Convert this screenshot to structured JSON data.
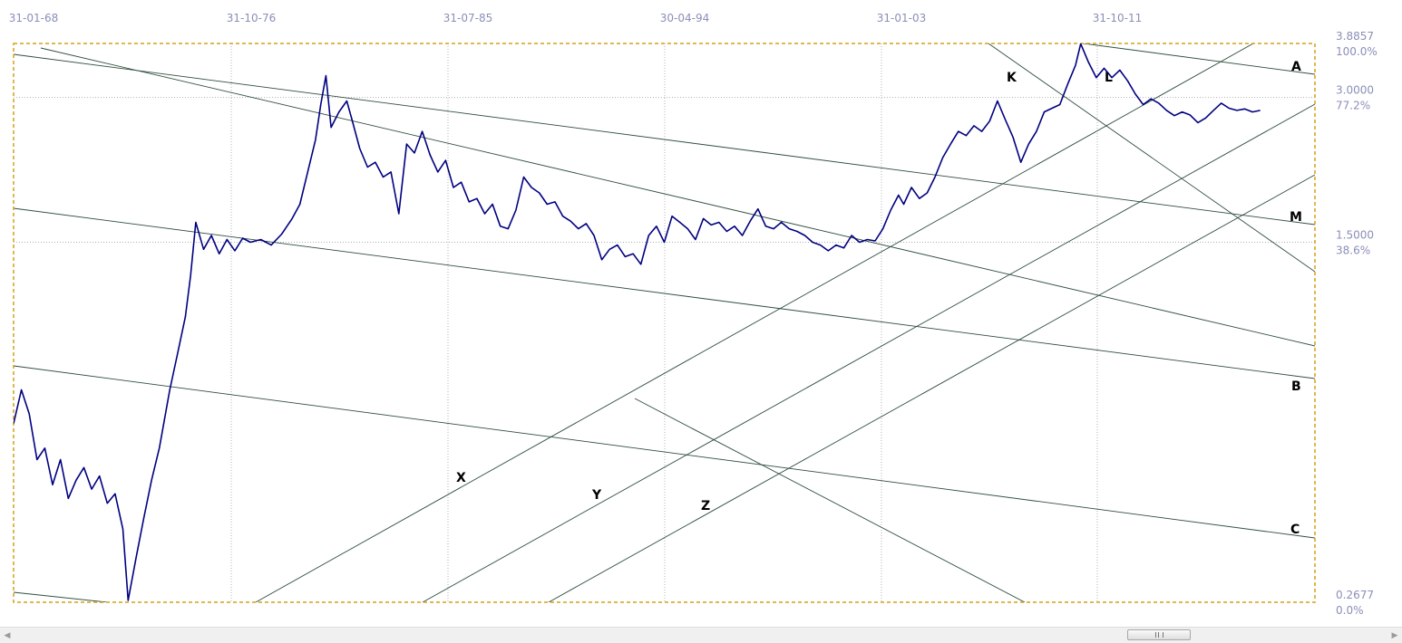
{
  "chart_data": {
    "type": "line",
    "scale": "log",
    "grid": true,
    "x_ticks": [
      "31-01-68",
      "31-10-76",
      "31-07-85",
      "30-04-94",
      "31-01-03",
      "31-10-11"
    ],
    "y_levels": [
      {
        "price": "3.8857",
        "pct": "100.0%"
      },
      {
        "price": "3.0000",
        "pct": "77.2%"
      },
      {
        "price": "1.5000",
        "pct": "38.6%"
      },
      {
        "price": "0.2677",
        "pct": "0.0%"
      }
    ],
    "line_labels": [
      "A",
      "B",
      "C",
      "M",
      "K",
      "L",
      "X",
      "Y",
      "Z"
    ],
    "colors": {
      "series": "#000080",
      "trendline": "#2e4e3c",
      "frame": "#d4a017",
      "grid": "#b0b0b0",
      "tick_text": "#8a8fb8"
    },
    "series_points": [
      [
        1968.0,
        0.63
      ],
      [
        1968.3,
        0.74
      ],
      [
        1968.6,
        0.66
      ],
      [
        1968.9,
        0.53
      ],
      [
        1969.2,
        0.56
      ],
      [
        1969.5,
        0.47
      ],
      [
        1969.8,
        0.53
      ],
      [
        1970.1,
        0.44
      ],
      [
        1970.4,
        0.48
      ],
      [
        1970.7,
        0.51
      ],
      [
        1971.0,
        0.46
      ],
      [
        1971.3,
        0.49
      ],
      [
        1971.6,
        0.43
      ],
      [
        1971.9,
        0.45
      ],
      [
        1972.2,
        0.38
      ],
      [
        1972.4,
        0.27
      ],
      [
        1972.7,
        0.33
      ],
      [
        1973.0,
        0.4
      ],
      [
        1973.3,
        0.48
      ],
      [
        1973.6,
        0.56
      ],
      [
        1974.0,
        0.74
      ],
      [
        1974.3,
        0.88
      ],
      [
        1974.6,
        1.05
      ],
      [
        1974.8,
        1.28
      ],
      [
        1975.0,
        1.65
      ],
      [
        1975.3,
        1.45
      ],
      [
        1975.6,
        1.55
      ],
      [
        1975.9,
        1.42
      ],
      [
        1976.2,
        1.52
      ],
      [
        1976.5,
        1.44
      ],
      [
        1976.8,
        1.53
      ],
      [
        1977.1,
        1.5
      ],
      [
        1977.5,
        1.52
      ],
      [
        1977.9,
        1.48
      ],
      [
        1978.3,
        1.56
      ],
      [
        1978.7,
        1.68
      ],
      [
        1979.0,
        1.8
      ],
      [
        1979.3,
        2.1
      ],
      [
        1979.6,
        2.45
      ],
      [
        1979.8,
        2.9
      ],
      [
        1980.0,
        3.33
      ],
      [
        1980.2,
        2.6
      ],
      [
        1980.5,
        2.8
      ],
      [
        1980.8,
        2.95
      ],
      [
        1981.0,
        2.7
      ],
      [
        1981.3,
        2.35
      ],
      [
        1981.6,
        2.15
      ],
      [
        1981.9,
        2.2
      ],
      [
        1982.2,
        2.05
      ],
      [
        1982.5,
        2.1
      ],
      [
        1982.8,
        1.72
      ],
      [
        1983.1,
        2.4
      ],
      [
        1983.4,
        2.3
      ],
      [
        1983.7,
        2.55
      ],
      [
        1984.0,
        2.28
      ],
      [
        1984.3,
        2.1
      ],
      [
        1984.6,
        2.22
      ],
      [
        1984.9,
        1.95
      ],
      [
        1985.2,
        2.0
      ],
      [
        1985.5,
        1.82
      ],
      [
        1985.8,
        1.85
      ],
      [
        1986.1,
        1.72
      ],
      [
        1986.4,
        1.8
      ],
      [
        1986.7,
        1.62
      ],
      [
        1987.0,
        1.6
      ],
      [
        1987.3,
        1.75
      ],
      [
        1987.6,
        2.05
      ],
      [
        1987.9,
        1.95
      ],
      [
        1988.2,
        1.9
      ],
      [
        1988.5,
        1.8
      ],
      [
        1988.8,
        1.82
      ],
      [
        1989.1,
        1.7
      ],
      [
        1989.4,
        1.66
      ],
      [
        1989.7,
        1.6
      ],
      [
        1990.0,
        1.64
      ],
      [
        1990.3,
        1.55
      ],
      [
        1990.6,
        1.38
      ],
      [
        1990.9,
        1.45
      ],
      [
        1991.2,
        1.48
      ],
      [
        1991.5,
        1.4
      ],
      [
        1991.8,
        1.42
      ],
      [
        1992.1,
        1.35
      ],
      [
        1992.4,
        1.55
      ],
      [
        1992.7,
        1.62
      ],
      [
        1993.0,
        1.5
      ],
      [
        1993.3,
        1.7
      ],
      [
        1993.6,
        1.65
      ],
      [
        1993.9,
        1.6
      ],
      [
        1994.2,
        1.52
      ],
      [
        1994.5,
        1.68
      ],
      [
        1994.8,
        1.63
      ],
      [
        1995.1,
        1.65
      ],
      [
        1995.4,
        1.58
      ],
      [
        1995.7,
        1.62
      ],
      [
        1996.0,
        1.55
      ],
      [
        1996.3,
        1.66
      ],
      [
        1996.6,
        1.76
      ],
      [
        1996.9,
        1.62
      ],
      [
        1997.2,
        1.6
      ],
      [
        1997.5,
        1.65
      ],
      [
        1997.8,
        1.6
      ],
      [
        1998.1,
        1.58
      ],
      [
        1998.4,
        1.55
      ],
      [
        1998.7,
        1.5
      ],
      [
        1999.0,
        1.48
      ],
      [
        1999.3,
        1.44
      ],
      [
        1999.6,
        1.48
      ],
      [
        1999.9,
        1.46
      ],
      [
        2000.2,
        1.55
      ],
      [
        2000.5,
        1.5
      ],
      [
        2000.8,
        1.52
      ],
      [
        2001.1,
        1.51
      ],
      [
        2001.4,
        1.6
      ],
      [
        2001.7,
        1.75
      ],
      [
        2002.0,
        1.88
      ],
      [
        2002.2,
        1.8
      ],
      [
        2002.5,
        1.95
      ],
      [
        2002.8,
        1.85
      ],
      [
        2003.1,
        1.9
      ],
      [
        2003.4,
        2.05
      ],
      [
        2003.7,
        2.25
      ],
      [
        2004.0,
        2.4
      ],
      [
        2004.3,
        2.55
      ],
      [
        2004.6,
        2.5
      ],
      [
        2004.9,
        2.62
      ],
      [
        2005.2,
        2.55
      ],
      [
        2005.5,
        2.68
      ],
      [
        2005.8,
        2.95
      ],
      [
        2006.1,
        2.7
      ],
      [
        2006.4,
        2.48
      ],
      [
        2006.7,
        2.2
      ],
      [
        2007.0,
        2.4
      ],
      [
        2007.3,
        2.55
      ],
      [
        2007.6,
        2.8
      ],
      [
        2007.9,
        2.85
      ],
      [
        2008.2,
        2.9
      ],
      [
        2008.5,
        3.2
      ],
      [
        2008.8,
        3.5
      ],
      [
        2009.0,
        3.88
      ],
      [
        2009.3,
        3.55
      ],
      [
        2009.6,
        3.3
      ],
      [
        2009.9,
        3.45
      ],
      [
        2010.2,
        3.3
      ],
      [
        2010.5,
        3.42
      ],
      [
        2010.8,
        3.25
      ],
      [
        2011.1,
        3.05
      ],
      [
        2011.4,
        2.9
      ],
      [
        2011.7,
        2.98
      ],
      [
        2012.0,
        2.92
      ],
      [
        2012.3,
        2.82
      ],
      [
        2012.6,
        2.75
      ],
      [
        2012.9,
        2.8
      ],
      [
        2013.2,
        2.76
      ],
      [
        2013.5,
        2.66
      ],
      [
        2013.8,
        2.72
      ],
      [
        2014.1,
        2.82
      ],
      [
        2014.4,
        2.92
      ],
      [
        2014.7,
        2.85
      ],
      [
        2015.0,
        2.82
      ],
      [
        2015.3,
        2.84
      ],
      [
        2015.6,
        2.8
      ],
      [
        2015.9,
        2.82
      ]
    ]
  }
}
